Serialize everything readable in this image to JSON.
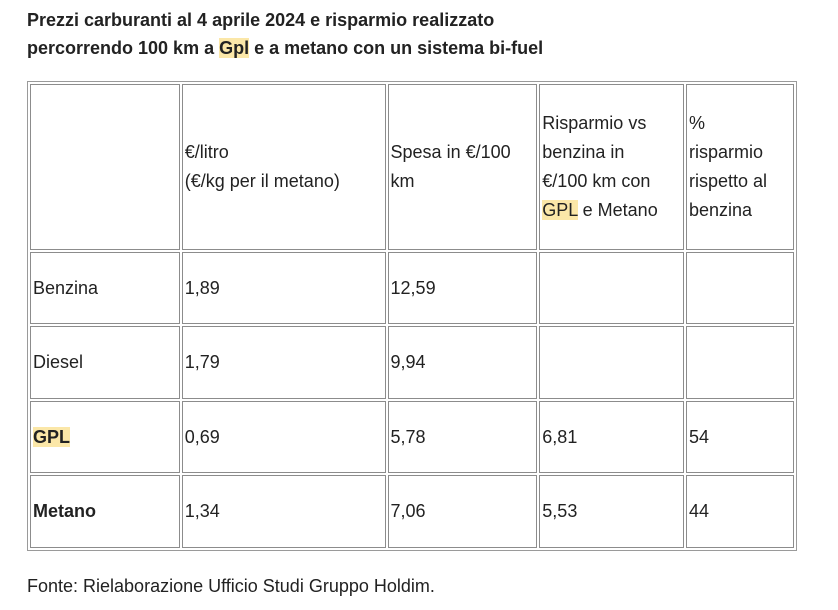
{
  "title": {
    "line1": "Prezzi carburanti al 4 aprile 2024 e risparmio realizzato",
    "line2_pre": "percorrendo 100 km a ",
    "line2_highlight": "Gpl",
    "line2_post": " e a metano con un sistema bi-fuel"
  },
  "table": {
    "headers": [
      "",
      "€/litro\n(€/kg per il metano)",
      "Spesa in €/100\nkm",
      "",
      "%\nrisparmio\nrispetto al\nbenzina"
    ],
    "header_savings": {
      "pre": "Risparmio vs\nbenzina in\n€/100 km con\n",
      "highlight": "GPL",
      "post": " e Metano"
    },
    "rows": [
      {
        "fuel": "Benzina",
        "price": "1,89",
        "cost": "12,59",
        "saving": "",
        "pct": ""
      },
      {
        "fuel": "Diesel",
        "price": "1,79",
        "cost": "9,94",
        "saving": "",
        "pct": ""
      },
      {
        "fuel": "GPL",
        "price": "0,69",
        "cost": "5,78",
        "saving": "6,81",
        "pct": "54"
      },
      {
        "fuel": "Metano",
        "price": "1,34",
        "cost": "7,06",
        "saving": "5,53",
        "pct": "44"
      }
    ]
  },
  "source": "Fonte: Rielaborazione Ufficio Studi Gruppo Holdim.",
  "colors": {
    "highlight": "#fbe7a8",
    "text": "#222222",
    "border": "#8c8c8c"
  }
}
